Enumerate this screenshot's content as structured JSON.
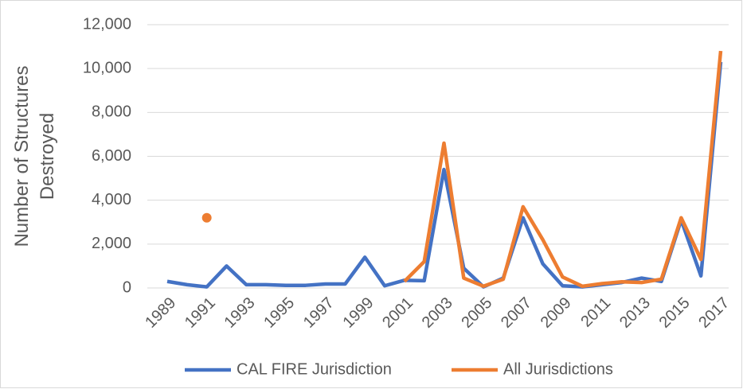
{
  "chart_data": {
    "type": "line",
    "y_label": [
      "Number of Structures",
      "Destroyed"
    ],
    "categories": [
      "1989",
      null,
      "1991",
      null,
      "1993",
      null,
      "1995",
      null,
      "1997",
      null,
      "1999",
      null,
      "2001",
      null,
      "2003",
      null,
      "2005",
      null,
      "2007",
      null,
      "2009",
      null,
      "2011",
      null,
      "2013",
      null,
      "2015",
      null,
      "2017"
    ],
    "series": [
      {
        "name": "CAL FIRE Jurisdiction",
        "color": "#4472c4",
        "values": [
          300,
          150,
          50,
          1000,
          150,
          150,
          120,
          120,
          180,
          180,
          1400,
          100,
          350,
          330,
          5400,
          900,
          50,
          450,
          3200,
          1100,
          100,
          50,
          150,
          250,
          450,
          300,
          3100,
          550,
          10300
        ]
      },
      {
        "name": "All Jurisdictions",
        "color": "#ed7d31",
        "values": [
          null,
          null,
          3200,
          null,
          null,
          null,
          null,
          null,
          null,
          null,
          null,
          null,
          300,
          1200,
          6600,
          450,
          80,
          400,
          3700,
          2200,
          500,
          80,
          200,
          280,
          250,
          400,
          3200,
          1300,
          10800
        ]
      }
    ],
    "ylim": [
      0,
      12000
    ],
    "yticks": [
      0,
      {
        "value": 2000,
        "label": "2,000"
      },
      {
        "value": 4000,
        "label": "4,000"
      },
      {
        "value": 6000,
        "label": "6,000"
      },
      {
        "value": 8000,
        "label": "8,000"
      },
      {
        "value": 10000,
        "label": "10,000"
      },
      {
        "value": 12000,
        "label": "12,000"
      }
    ],
    "grid": true,
    "legend": "bottom"
  }
}
